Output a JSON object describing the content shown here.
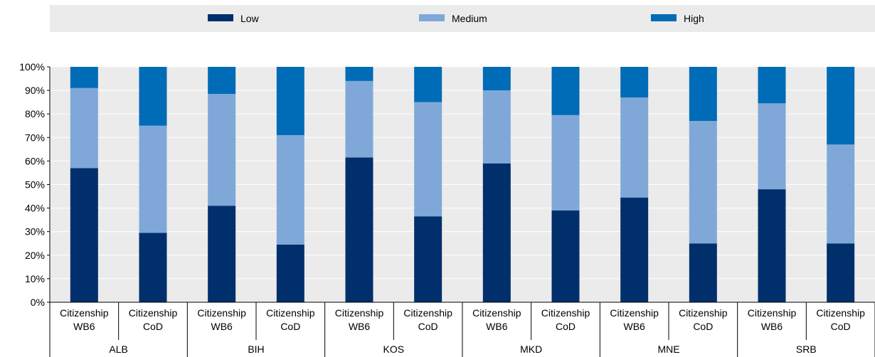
{
  "chart_data": {
    "type": "bar",
    "stacked": true,
    "ylim": [
      0,
      100
    ],
    "yticks": [
      "0%",
      "10%",
      "20%",
      "30%",
      "40%",
      "50%",
      "60%",
      "70%",
      "80%",
      "90%",
      "100%"
    ],
    "legend_position": "top",
    "groups": [
      "ALB",
      "BIH",
      "KOS",
      "MKD",
      "MNE",
      "SRB"
    ],
    "subcategories": [
      [
        "Citizenship",
        "WB6"
      ],
      [
        "Citizenship",
        "CoD"
      ]
    ],
    "series": [
      {
        "name": "Low",
        "color": "#002f6c",
        "values": [
          57,
          29.5,
          41,
          24.5,
          61.5,
          36.5,
          59,
          39,
          44.5,
          25,
          48,
          25
        ]
      },
      {
        "name": "Medium",
        "color": "#7fa8d9",
        "values": [
          34,
          45.5,
          47.5,
          46.5,
          32.5,
          48.5,
          31,
          40.5,
          42.5,
          52,
          36.5,
          42
        ]
      },
      {
        "name": "High",
        "color": "#006bb6",
        "values": [
          9,
          25,
          11.5,
          29,
          6,
          15,
          10,
          20.5,
          13,
          23,
          15.5,
          33
        ]
      }
    ]
  }
}
